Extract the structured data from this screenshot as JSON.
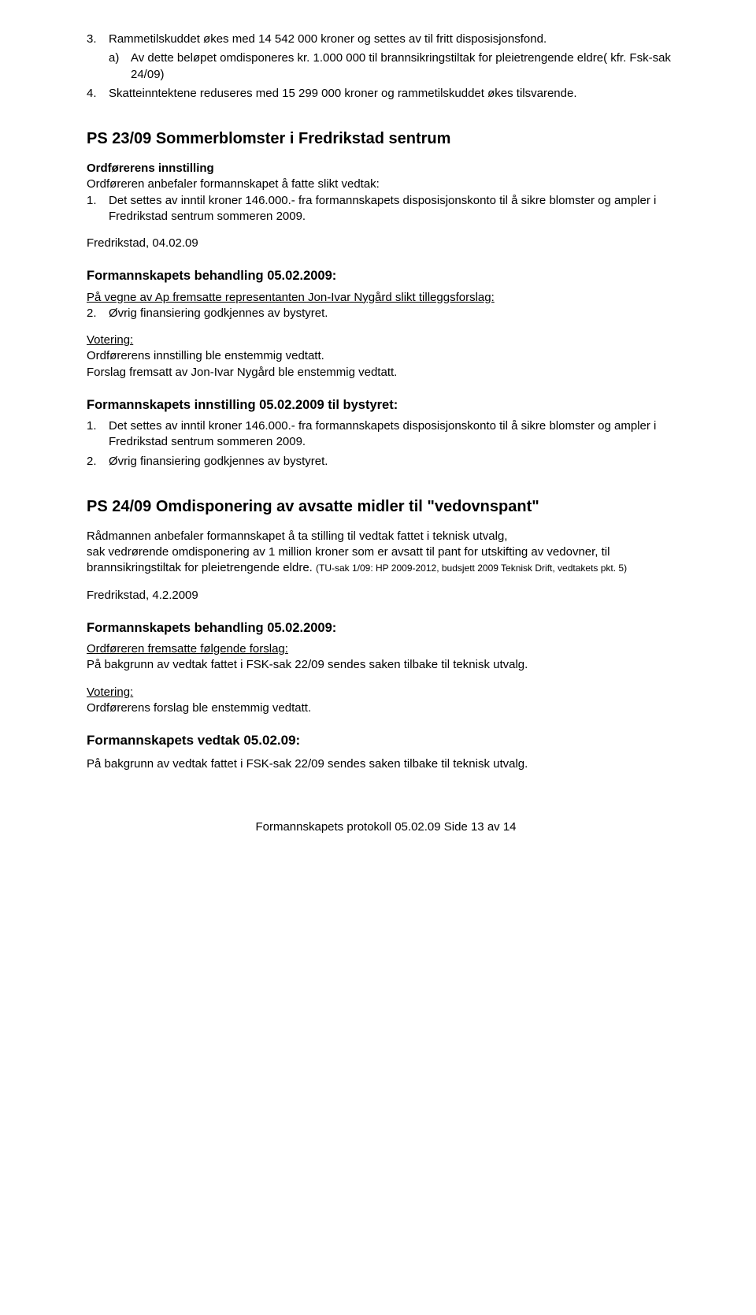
{
  "top": {
    "item3_num": "3.",
    "item3_text": "Rammetilskuddet økes med 14 542 000 kroner og settes av til fritt disposisjonsfond.",
    "item3a_num": "a)",
    "item3a_text": "Av dette beløpet omdisponeres kr. 1.000 000 til brannsikringstiltak for pleietrengende eldre( kfr. Fsk-sak 24/09)",
    "item4_num": "4.",
    "item4_text": "Skatteinntektene reduseres med 15 299 000 kroner og rammetilskuddet økes tilsvarende."
  },
  "ps23": {
    "title": "PS 23/09 Sommerblomster i Fredrikstad sentrum",
    "h_innstilling": "Ordførerens innstilling",
    "innstilling_line": "Ordføreren anbefaler formannskapet å fatte slikt vedtak:",
    "i1_num": "1.",
    "i1_text": "Det settes av inntil kroner 146.000.- fra formannskapets disposisjonskonto til å sikre blomster og ampler i Fredrikstad sentrum sommeren 2009.",
    "date": "Fredrikstad, 04.02.09",
    "h_behandling": "Formannskapets behandling 05.02.2009:",
    "beh_line_u": "På vegne av Ap fremsatte representanten Jon-Ivar Nygård slikt tilleggsforslag:",
    "beh2_num": "2.",
    "beh2_text": "Øvrig finansiering godkjennes av bystyret.",
    "vot_h": "Votering:",
    "vot1": "Ordførerens innstilling ble enstemmig vedtatt.",
    "vot2": "Forslag fremsatt av Jon-Ivar Nygård ble enstemmig vedtatt.",
    "h_innst_by": "Formannskapets innstilling  05.02.2009 til bystyret:",
    "by1_num": "1.",
    "by1_text": "Det settes av inntil kroner 146.000.- fra formannskapets disposisjonskonto til å sikre blomster og ampler i Fredrikstad sentrum sommeren 2009.",
    "by2_num": "2.",
    "by2_text": "Øvrig finansiering godkjennes av bystyret."
  },
  "ps24": {
    "title": "PS 24/09 Omdisponering av avsatte midler til \"vedovnspant\"",
    "p1a": "Rådmannen anbefaler formannskapet å ta stilling til vedtak fattet i teknisk utvalg,",
    "p1b": "sak vedrørende omdisponering av 1 million kroner som er avsatt til pant for utskifting av vedovner, til brannsikringstiltak for pleietrengende eldre. ",
    "p1c_small": "(TU-sak 1/09: HP 2009-2012, budsjett 2009 Teknisk Drift, vedtakets pkt. 5)",
    "date": "Fredrikstad, 4.2.2009",
    "h_behandling": "Formannskapets behandling 05.02.2009:",
    "beh_u": "Ordføreren fremsatte følgende forslag:",
    "beh_line": "På bakgrunn av vedtak fattet i FSK-sak 22/09 sendes saken tilbake til teknisk utvalg.",
    "vot_h": "Votering:",
    "vot1": "Ordførerens forslag ble enstemmig vedtatt.",
    "h_vedtak": "Formannskapets vedtak 05.02.09:",
    "vedtak_line": "På bakgrunn av vedtak fattet i FSK-sak 22/09 sendes saken tilbake til teknisk utvalg."
  },
  "footer": "Formannskapets protokoll 05.02.09     Side 13 av 14"
}
